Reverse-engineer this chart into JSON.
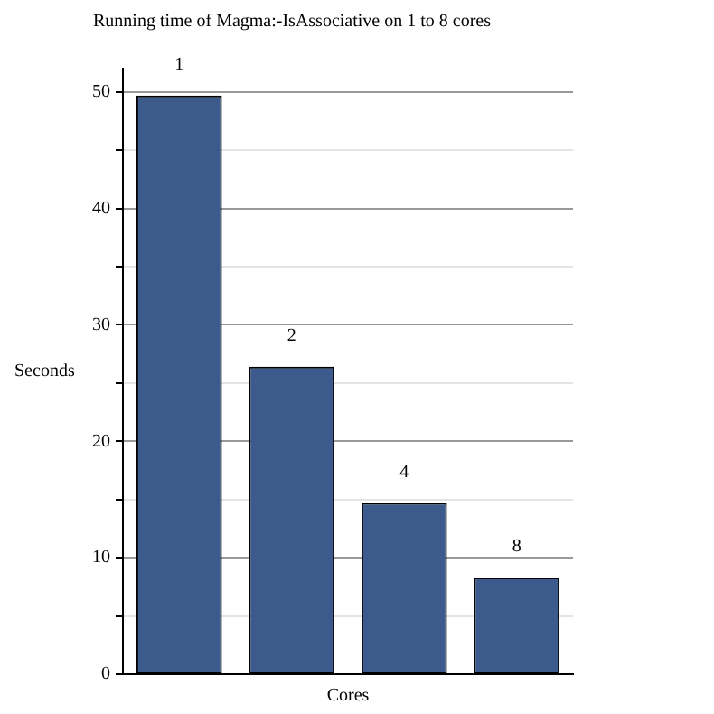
{
  "chart_data": {
    "type": "bar",
    "title": "Running time of Magma:-IsAssociative on 1 to 8 cores",
    "xlabel": "Cores",
    "ylabel": "Seconds",
    "categories": [
      "1",
      "2",
      "4",
      "8"
    ],
    "values": [
      49.7,
      26.4,
      14.7,
      8.3
    ],
    "color": "#3d5a8c",
    "ylim": [
      0,
      52
    ],
    "yticks": [
      0,
      {
        "value": 5,
        "label": null
      },
      10,
      {
        "value": 15,
        "label": null
      },
      20,
      {
        "value": 25,
        "label": null
      },
      30,
      {
        "value": 35,
        "label": null
      },
      40,
      {
        "value": 45,
        "label": null
      },
      50
    ],
    "grid": "y",
    "tick_labels": "y"
  }
}
